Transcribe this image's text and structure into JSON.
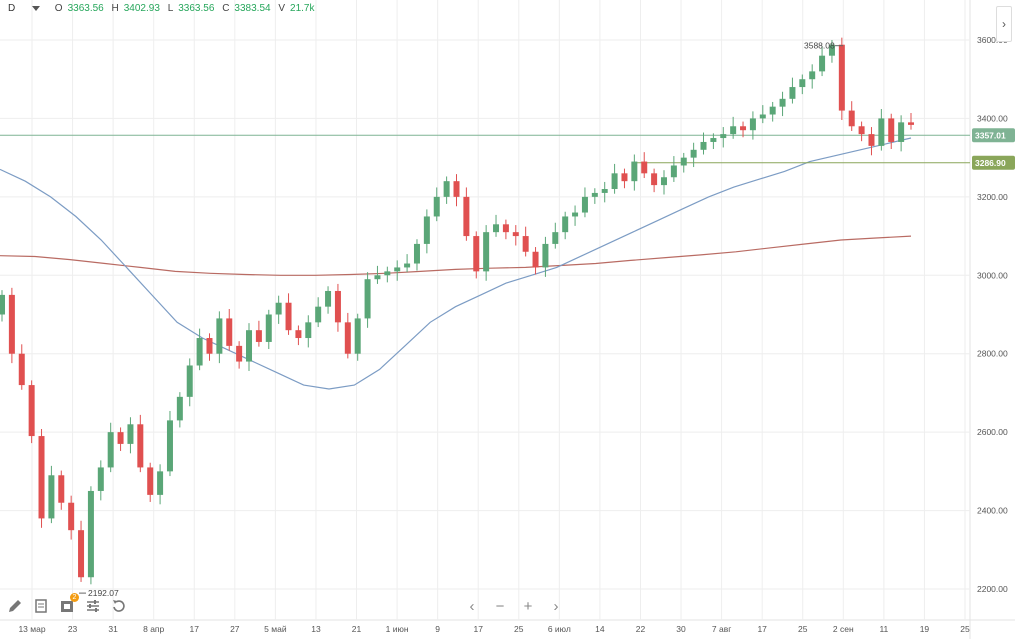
{
  "header": {
    "interval": "D",
    "open_label": "O",
    "open": "3363.56",
    "high_label": "H",
    "high": "3402.93",
    "low_label": "L",
    "low": "3363.56",
    "close_label": "C",
    "close": "3383.54",
    "volume_label": "V",
    "volume": "21.7k"
  },
  "collapse_icon": "chevron-right-icon",
  "toolbar": {
    "tools": [
      "pencil-icon",
      "document-icon",
      "layers-icon",
      "settings-sliders-icon",
      "undo-icon"
    ],
    "layers_badge": "2"
  },
  "navigation": [
    "chevron-left-icon",
    "zoom-out-icon",
    "zoom-in-icon",
    "chevron-right-icon"
  ],
  "colors": {
    "up": "#5aa677",
    "down": "#e05050",
    "ma_fast": "#7c9cc4",
    "ma_slow": "#b96b63",
    "price_line": "#7fb394",
    "level_line": "#8aa65a",
    "grid": "#eeeeee"
  },
  "chart_data": {
    "type": "candlestick",
    "ylim": [
      2170,
      3650
    ],
    "y_ticks": [
      "2200.00",
      "2400.00",
      "2600.00",
      "2800.00",
      "3000.00",
      "3200.00",
      "3400.00",
      "3600.00"
    ],
    "x_ticks": [
      "13 мар",
      "23",
      "31",
      "8 апр",
      "17",
      "27",
      "5 май",
      "13",
      "21",
      "1 июн",
      "9",
      "17",
      "25",
      "6 июл",
      "14",
      "22",
      "30",
      "7 авг",
      "17",
      "25",
      "2 сен",
      "11",
      "19",
      "25"
    ],
    "annotations": {
      "high": "3588.08",
      "low": "2192.07"
    },
    "price_line": {
      "value": 3357.01,
      "label": "3357.01"
    },
    "level_line": {
      "value": 3286.9,
      "label": "3286.90"
    },
    "closes": [
      2950,
      2800,
      2720,
      2590,
      2380,
      2490,
      2420,
      2350,
      2230,
      2450,
      2510,
      2600,
      2570,
      2620,
      2510,
      2440,
      2500,
      2630,
      2690,
      2770,
      2840,
      2800,
      2890,
      2820,
      2780,
      2860,
      2830,
      2900,
      2930,
      2860,
      2840,
      2880,
      2920,
      2960,
      2880,
      2800,
      2890,
      2990,
      3000,
      3010,
      3020,
      3030,
      3080,
      3150,
      3200,
      3240,
      3200,
      3100,
      3010,
      3110,
      3130,
      3110,
      3100,
      3060,
      3020,
      3080,
      3110,
      3150,
      3160,
      3200,
      3210,
      3220,
      3260,
      3240,
      3290,
      3260,
      3230,
      3250,
      3280,
      3300,
      3320,
      3340,
      3350,
      3360,
      3380,
      3370,
      3400,
      3410,
      3430,
      3450,
      3480,
      3500,
      3520,
      3560,
      3588,
      3420,
      3380,
      3360,
      3330,
      3400,
      3340,
      3390,
      3383.54
    ],
    "ma_fast": [
      3270,
      3240,
      3200,
      3150,
      3090,
      3020,
      2950,
      2880,
      2840,
      2810,
      2780,
      2750,
      2720,
      2710,
      2720,
      2760,
      2820,
      2880,
      2920,
      2950,
      2980,
      3000,
      3020,
      3050,
      3080,
      3110,
      3140,
      3170,
      3200,
      3225,
      3245,
      3265,
      3290,
      3305,
      3320,
      3335,
      3350
    ],
    "ma_slow": [
      3050,
      3048,
      3040,
      3030,
      3020,
      3010,
      3005,
      3002,
      3000,
      3000,
      3002,
      3005,
      3010,
      3015,
      3018,
      3020,
      3025,
      3030,
      3038,
      3045,
      3052,
      3060,
      3070,
      3080,
      3090,
      3095,
      3100
    ]
  }
}
